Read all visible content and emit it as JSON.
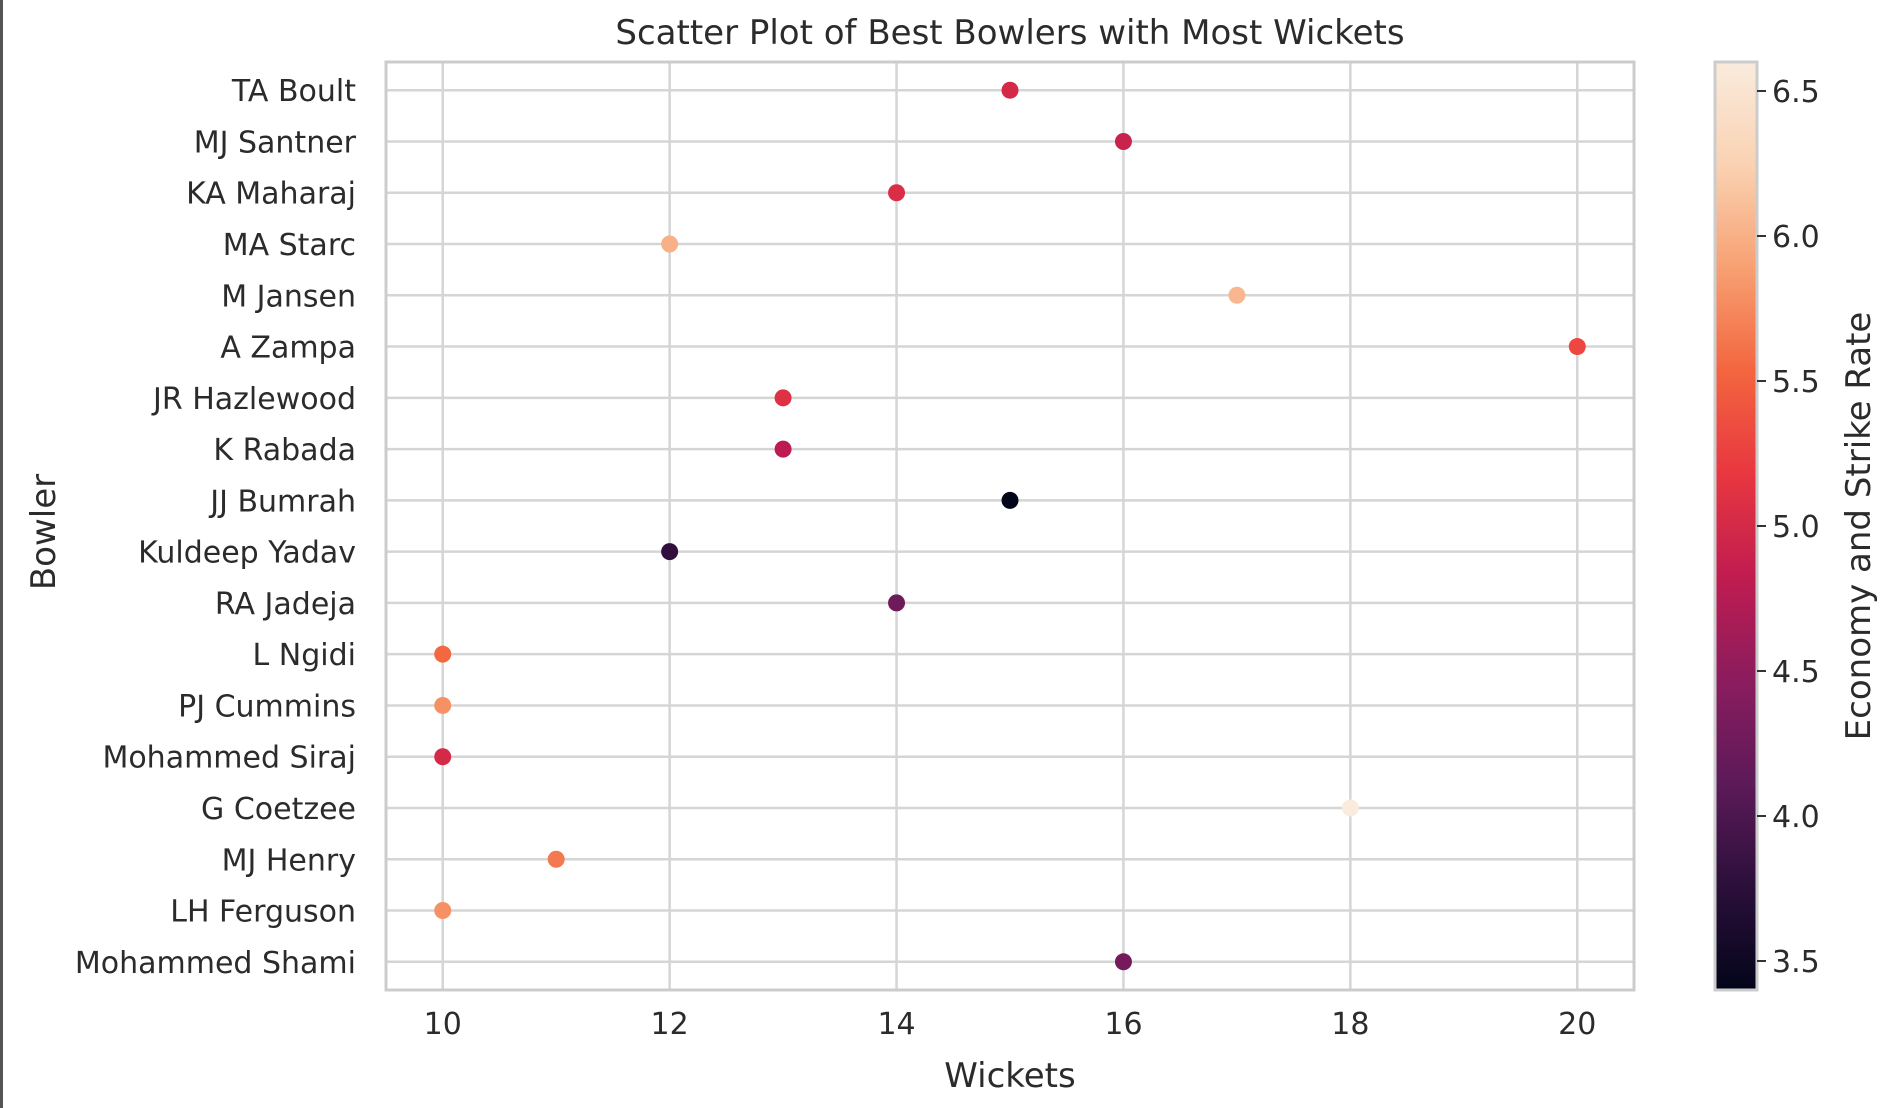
{
  "chart_data": {
    "type": "scatter",
    "title": "Scatter Plot of Best Bowlers with Most Wickets",
    "xlabel": "Wickets",
    "ylabel": "Bowler",
    "xlim": [
      9.5,
      20.5
    ],
    "xticks": [
      "10",
      "12",
      "14",
      "16",
      "18",
      "20"
    ],
    "grid": true,
    "colorbar": {
      "label": "Economy and Strike Rate",
      "range": [
        3.4,
        6.6
      ],
      "ticks": [
        "3.5",
        "4.0",
        "4.5",
        "5.0",
        "5.5",
        "6.0",
        "6.5"
      ],
      "colormap": "rocket",
      "colors": [
        "#03051a",
        "#2b0f3a",
        "#5c1a59",
        "#8b1c5e",
        "#c01c50",
        "#e83740",
        "#f3653f",
        "#f7a072",
        "#fad2b2",
        "#faebdd"
      ]
    },
    "points": [
      {
        "bowler": "TA Boult",
        "wickets": 15,
        "economy": 5.0
      },
      {
        "bowler": "MJ Santner",
        "wickets": 16,
        "economy": 4.9
      },
      {
        "bowler": "KA Maharaj",
        "wickets": 14,
        "economy": 5.05
      },
      {
        "bowler": "MA Starc",
        "wickets": 12,
        "economy": 6.0
      },
      {
        "bowler": "M Jansen",
        "wickets": 17,
        "economy": 6.05
      },
      {
        "bowler": "A Zampa",
        "wickets": 20,
        "economy": 5.3
      },
      {
        "bowler": "JR Hazlewood",
        "wickets": 13,
        "economy": 5.1
      },
      {
        "bowler": "K Rabada",
        "wickets": 13,
        "economy": 4.8
      },
      {
        "bowler": "JJ Bumrah",
        "wickets": 15,
        "economy": 3.4
      },
      {
        "bowler": "Kuldeep Yadav",
        "wickets": 12,
        "economy": 3.8
      },
      {
        "bowler": "RA Jadeja",
        "wickets": 14,
        "economy": 4.25
      },
      {
        "bowler": "L Ngidi",
        "wickets": 10,
        "economy": 5.55
      },
      {
        "bowler": "PJ Cummins",
        "wickets": 10,
        "economy": 5.8
      },
      {
        "bowler": "Mohammed Siraj",
        "wickets": 10,
        "economy": 5.0
      },
      {
        "bowler": "G Coetzee",
        "wickets": 18,
        "economy": 6.6
      },
      {
        "bowler": "MJ Henry",
        "wickets": 11,
        "economy": 5.65
      },
      {
        "bowler": "LH Ferguson",
        "wickets": 10,
        "economy": 5.8
      },
      {
        "bowler": "Mohammed Shami",
        "wickets": 16,
        "economy": 4.3
      }
    ]
  }
}
